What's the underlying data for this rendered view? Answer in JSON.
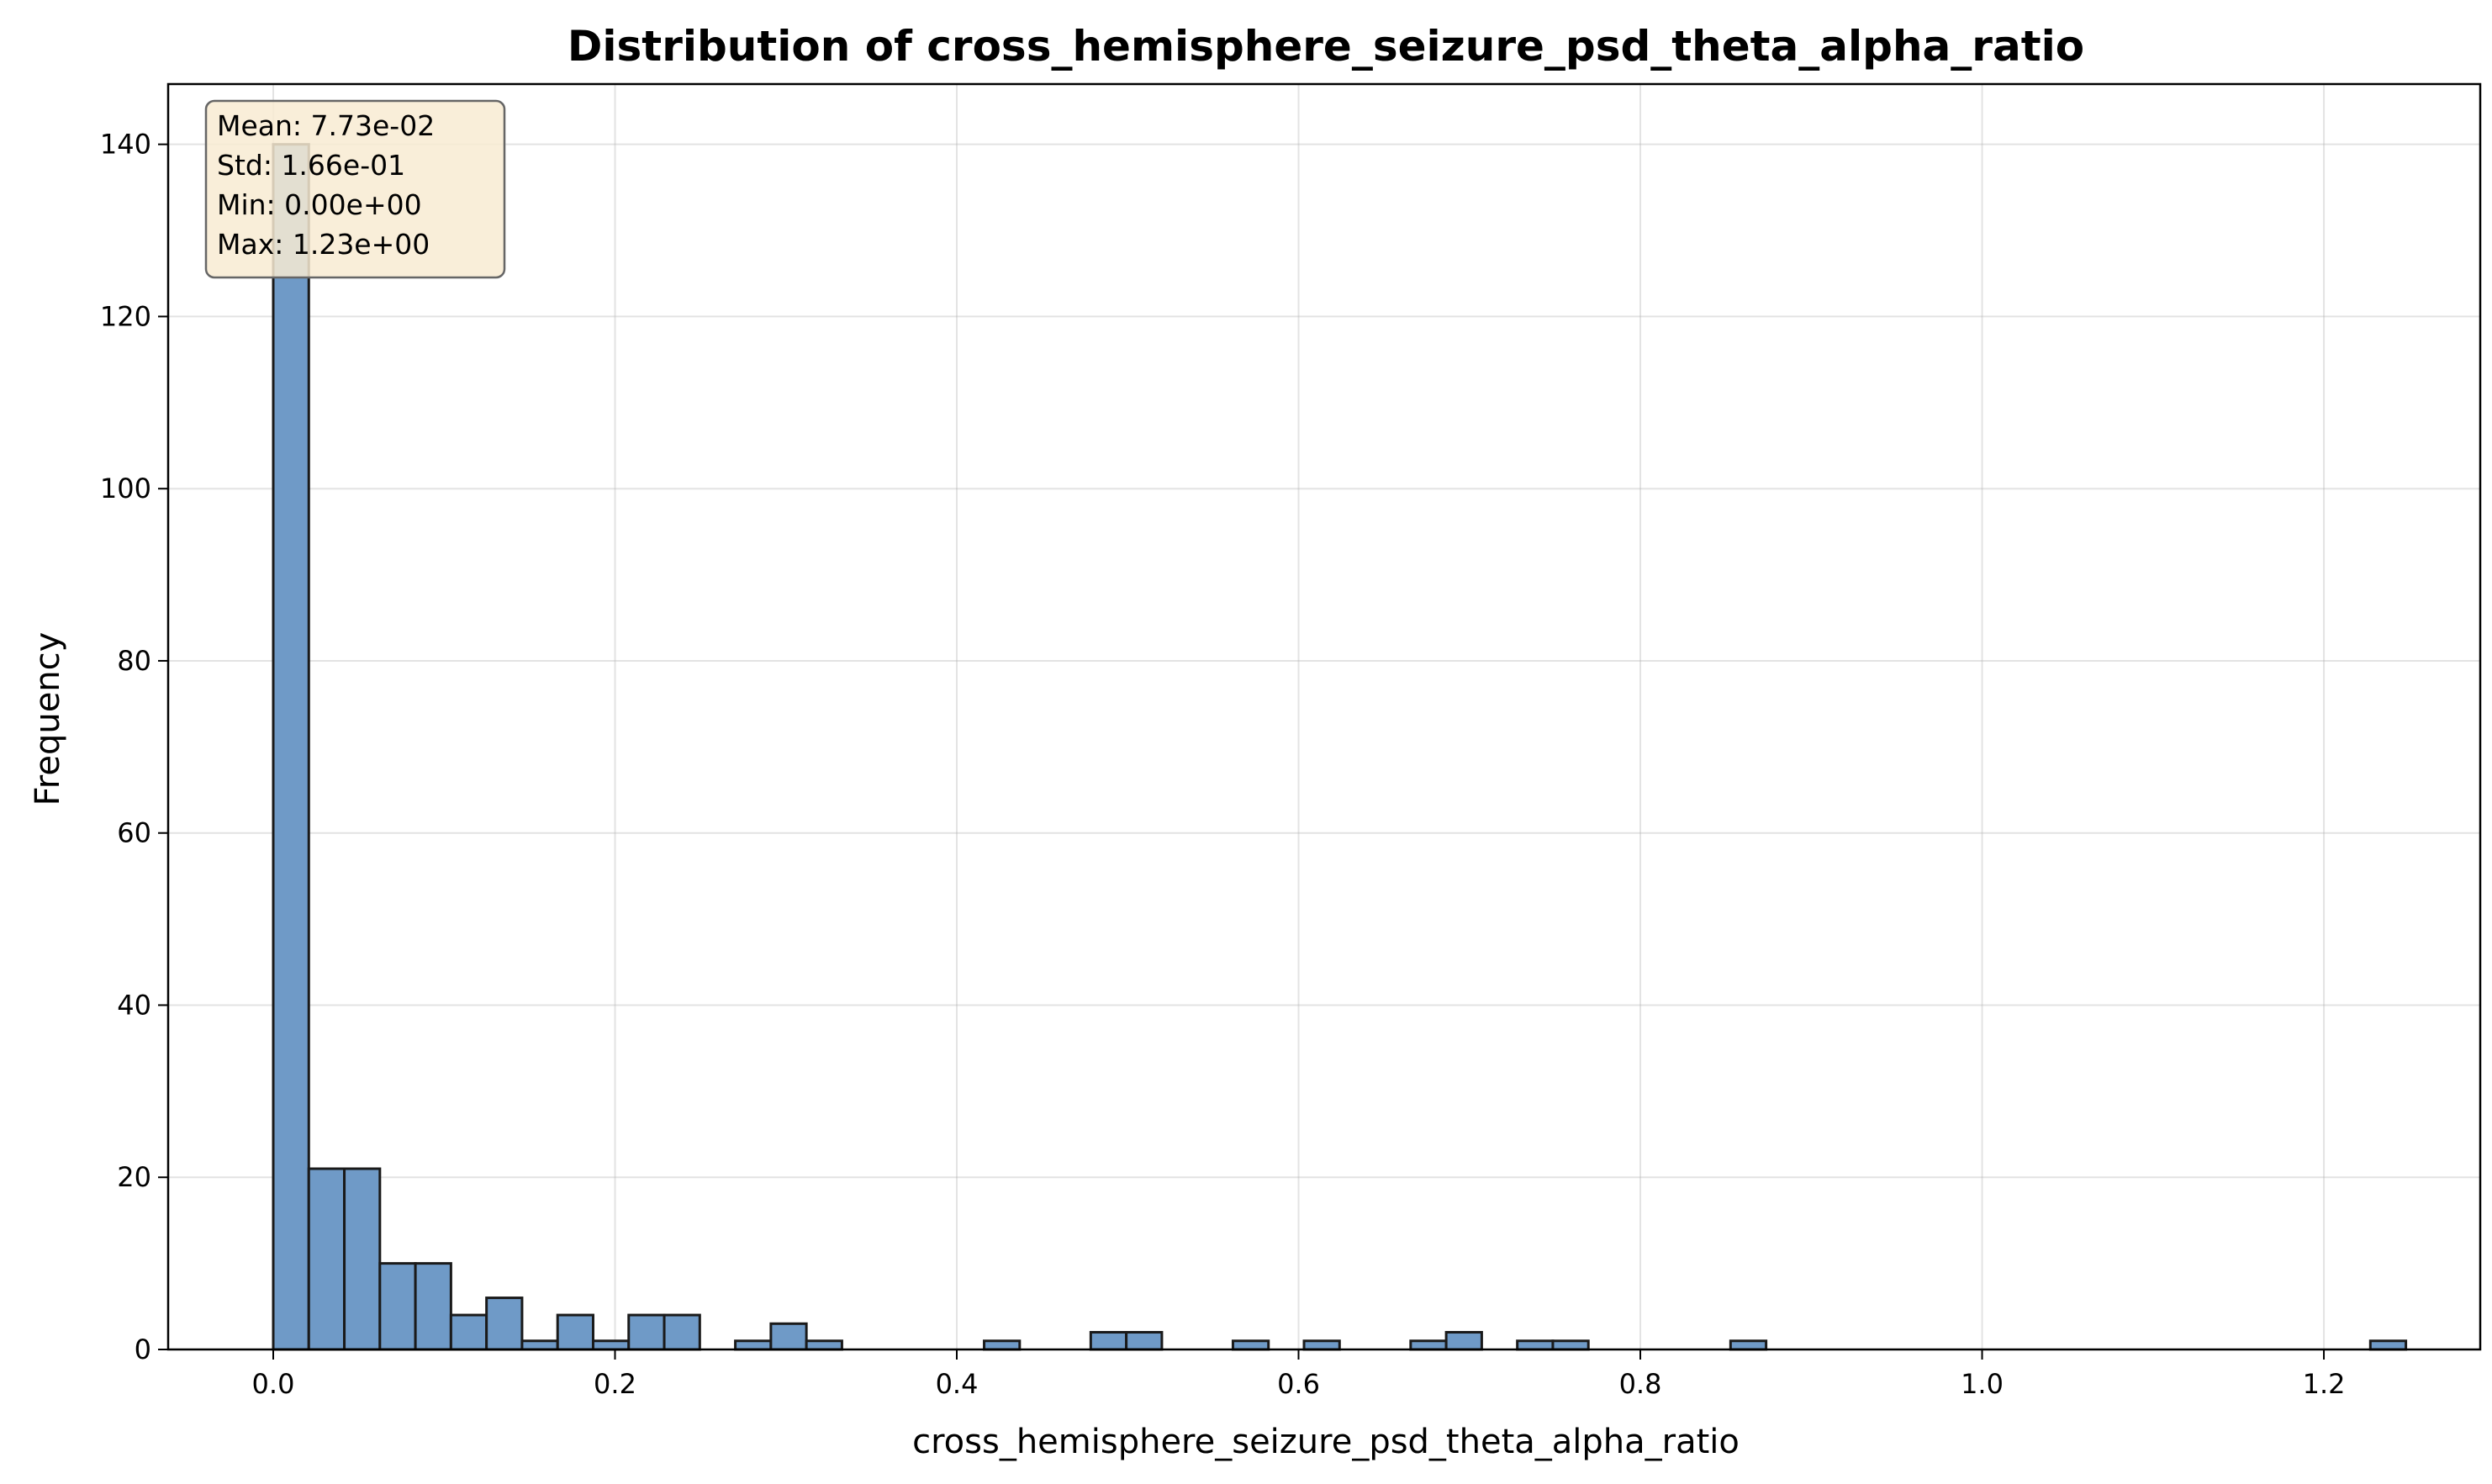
{
  "chart_data": {
    "type": "bar",
    "title": "Distribution of cross_hemisphere_seizure_psd_theta_alpha_ratio",
    "xlabel": "cross_hemisphere_seizure_psd_theta_alpha_ratio",
    "ylabel": "Frequency",
    "xlim": [
      -0.0615,
      1.2915
    ],
    "ylim": [
      0,
      147
    ],
    "xticks": [
      0.0,
      0.2,
      0.4,
      0.6,
      0.8,
      1.0,
      1.2
    ],
    "xtick_labels": [
      "0.0",
      "0.2",
      "0.4",
      "0.6",
      "0.8",
      "1.0",
      "1.2"
    ],
    "yticks": [
      0,
      20,
      40,
      60,
      80,
      100,
      120,
      140
    ],
    "ytick_labels": [
      "0",
      "20",
      "40",
      "60",
      "80",
      "100",
      "120",
      "140"
    ],
    "bin_start": 0.0,
    "bin_width": 0.0208,
    "values": [
      140,
      21,
      21,
      10,
      10,
      4,
      6,
      1,
      4,
      1,
      4,
      4,
      0,
      1,
      3,
      1,
      0,
      0,
      0,
      0,
      1,
      0,
      0,
      2,
      2,
      0,
      0,
      1,
      0,
      1,
      0,
      0,
      1,
      2,
      0,
      1,
      1,
      0,
      0,
      0,
      0,
      1,
      0,
      0,
      0,
      0,
      0,
      0,
      0,
      0,
      0,
      0,
      0,
      0,
      0,
      0,
      0,
      0,
      0,
      1
    ],
    "grid": true,
    "bar_color": "#6f9ac7",
    "bar_edge_color": "#1a1a1a",
    "stats_box": {
      "lines": [
        "Mean: 7.73e-02",
        "Std: 1.66e-01",
        "Min: 0.00e+00",
        "Max: 1.23e+00"
      ],
      "background": "#f8ebd2"
    }
  }
}
